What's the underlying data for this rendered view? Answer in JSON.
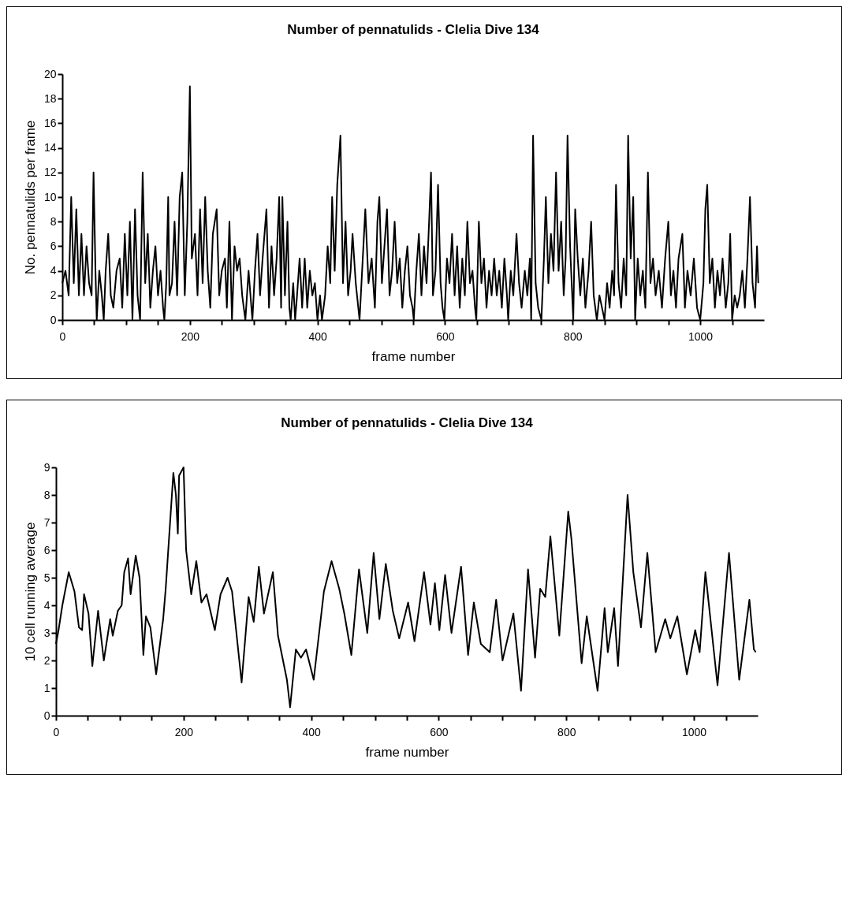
{
  "chart_data": [
    {
      "type": "line",
      "title": "Number of pennatulids - Clelia Dive 134",
      "xlabel": "frame number",
      "ylabel": "No. pennatulids per frame",
      "color": "#000000",
      "line_style": "solid",
      "x": [
        0,
        5,
        10,
        14,
        18,
        22,
        26,
        30,
        34,
        38,
        42,
        46,
        49,
        52,
        54,
        58,
        62,
        65,
        68,
        72,
        76,
        80,
        85,
        90,
        94,
        98,
        102,
        106,
        110,
        114,
        118,
        122,
        126,
        130,
        134,
        138,
        142,
        146,
        150,
        154,
        158,
        160,
        163,
        166,
        168,
        172,
        176,
        180,
        184,
        188,
        192,
        196,
        200,
        203,
        208,
        212,
        216,
        220,
        224,
        228,
        232,
        236,
        242,
        246,
        250,
        255,
        258,
        262,
        266,
        270,
        274,
        278,
        282,
        287,
        292,
        298,
        302,
        306,
        310,
        314,
        320,
        324,
        328,
        332,
        336,
        340,
        343,
        345,
        349,
        353,
        356,
        358,
        362,
        365,
        368,
        372,
        376,
        380,
        384,
        388,
        392,
        396,
        400,
        404,
        407,
        412,
        416,
        420,
        423,
        427,
        431,
        436,
        440,
        444,
        448,
        452,
        455,
        460,
        466,
        470,
        475,
        480,
        485,
        490,
        494,
        497,
        501,
        505,
        509,
        513,
        517,
        521,
        525,
        529,
        533,
        537,
        541,
        545,
        549,
        551,
        555,
        559,
        563,
        567,
        571,
        575,
        578,
        581,
        585,
        589,
        593,
        596,
        599,
        603,
        607,
        611,
        615,
        619,
        623,
        627,
        631,
        635,
        639,
        643,
        647,
        649,
        653,
        657,
        661,
        665,
        669,
        673,
        677,
        681,
        685,
        689,
        693,
        697,
        699,
        703,
        707,
        712,
        716,
        720,
        725,
        729,
        733,
        735,
        738,
        742,
        746,
        751,
        755,
        758,
        762,
        766,
        770,
        774,
        778,
        782,
        786,
        789,
        792,
        796,
        801,
        804,
        808,
        812,
        816,
        820,
        825,
        829,
        833,
        838,
        842,
        846,
        850,
        854,
        858,
        862,
        865,
        868,
        872,
        876,
        880,
        884,
        887,
        891,
        895,
        898,
        902,
        906,
        910,
        914,
        918,
        922,
        926,
        930,
        935,
        940,
        945,
        950,
        954,
        958,
        962,
        966,
        972,
        976,
        980,
        985,
        990,
        995,
        1000,
        1005,
        1008,
        1011,
        1015,
        1019,
        1023,
        1027,
        1031,
        1035,
        1040,
        1044,
        1047,
        1050,
        1054,
        1058,
        1062,
        1066,
        1070,
        1074,
        1078,
        1082,
        1086,
        1089,
        1091
      ],
      "values": [
        3,
        4,
        2,
        10,
        3,
        9,
        2,
        7,
        2,
        6,
        3,
        2,
        12,
        4,
        0,
        4,
        2,
        0,
        4,
        7,
        2,
        1,
        4,
        5,
        1,
        7,
        2,
        8,
        0,
        9,
        2,
        0,
        12,
        3,
        7,
        1,
        4,
        6,
        2,
        4,
        1,
        0,
        3,
        10,
        2,
        3,
        8,
        2,
        10,
        12,
        2,
        8,
        19,
        5,
        7,
        2,
        9,
        3,
        10,
        4,
        1,
        7,
        9,
        2,
        4,
        5,
        1,
        8,
        0,
        6,
        4,
        5,
        2,
        0,
        4,
        0,
        4,
        7,
        2,
        5,
        9,
        1,
        6,
        2,
        5,
        10,
        1,
        10,
        2,
        8,
        1,
        0,
        3,
        0,
        2,
        5,
        1,
        5,
        1,
        4,
        2,
        3,
        0,
        2,
        0,
        2,
        6,
        3,
        10,
        4,
        11,
        15,
        3,
        8,
        2,
        4,
        7,
        3,
        0,
        4,
        9,
        3,
        5,
        1,
        8,
        10,
        3,
        6,
        9,
        2,
        4,
        8,
        3,
        5,
        1,
        4,
        6,
        2,
        1,
        0,
        4,
        7,
        2,
        6,
        3,
        8,
        12,
        2,
        4,
        11,
        3,
        1,
        0,
        5,
        3,
        7,
        2,
        6,
        1,
        5,
        2,
        8,
        3,
        4,
        1,
        0,
        8,
        3,
        5,
        1,
        4,
        2,
        5,
        2,
        4,
        1,
        5,
        2,
        0,
        4,
        2,
        7,
        3,
        1,
        4,
        2,
        5,
        0,
        15,
        3,
        1,
        0,
        5,
        10,
        3,
        7,
        4,
        12,
        4,
        8,
        2,
        5,
        15,
        6,
        0,
        9,
        5,
        2,
        5,
        1,
        4,
        8,
        2,
        0,
        2,
        1,
        0,
        3,
        1,
        4,
        2,
        11,
        3,
        1,
        5,
        2,
        15,
        5,
        10,
        0,
        5,
        2,
        4,
        1,
        12,
        3,
        5,
        2,
        4,
        1,
        5,
        8,
        2,
        4,
        1,
        5,
        7,
        1,
        4,
        2,
        5,
        1,
        0,
        3,
        9,
        11,
        3,
        5,
        1,
        4,
        2,
        5,
        1,
        3,
        7,
        0,
        2,
        1,
        2,
        4,
        1,
        5,
        10,
        3,
        1,
        6,
        3
      ],
      "xlim": [
        0,
        1100
      ],
      "xticks": [
        0,
        {
          "value": 50,
          "label": null
        },
        {
          "value": 100,
          "label": null
        },
        {
          "value": 150,
          "label": null
        },
        200,
        {
          "value": 250,
          "label": null
        },
        {
          "value": 300,
          "label": null
        },
        {
          "value": 350,
          "label": null
        },
        400,
        {
          "value": 450,
          "label": null
        },
        {
          "value": 500,
          "label": null
        },
        {
          "value": 550,
          "label": null
        },
        600,
        {
          "value": 650,
          "label": null
        },
        {
          "value": 700,
          "label": null
        },
        {
          "value": 750,
          "label": null
        },
        800,
        {
          "value": 850,
          "label": null
        },
        {
          "value": 900,
          "label": null
        },
        {
          "value": 950,
          "label": null
        },
        1000,
        {
          "value": 1050,
          "label": null
        }
      ],
      "ylim": [
        0,
        20
      ],
      "yticks": [
        0,
        2,
        4,
        6,
        8,
        10,
        12,
        14,
        16,
        18,
        20
      ]
    },
    {
      "type": "line",
      "title": "Number of pennatulids - Clelia Dive 134",
      "xlabel": "frame number",
      "ylabel": "10 cell running average",
      "color": "#000000",
      "line_style": "solid",
      "x": [
        0,
        4,
        10,
        20,
        29,
        36,
        41,
        44,
        51,
        57,
        66,
        75,
        85,
        89,
        97,
        103,
        107,
        113,
        117,
        125,
        131,
        137,
        141,
        148,
        157,
        168,
        172,
        184,
        188,
        191,
        193,
        200,
        204,
        212,
        220,
        228,
        236,
        249,
        258,
        269,
        276,
        291,
        302,
        310,
        318,
        326,
        340,
        348,
        362,
        367,
        376,
        384,
        392,
        404,
        420,
        432,
        444,
        452,
        463,
        475,
        488,
        498,
        507,
        517,
        528,
        538,
        552,
        562,
        577,
        587,
        594,
        601,
        610,
        620,
        635,
        646,
        655,
        666,
        680,
        690,
        700,
        717,
        729,
        740,
        751,
        759,
        767,
        775,
        789,
        803,
        808,
        824,
        832,
        849,
        860,
        865,
        875,
        881,
        896,
        905,
        917,
        927,
        940,
        955,
        963,
        974,
        989,
        1002,
        1009,
        1018,
        1037,
        1055,
        1071,
        1087,
        1094,
        1097
      ],
      "values": [
        2.6,
        3.1,
        4.0,
        5.2,
        4.5,
        3.2,
        3.1,
        4.4,
        3.7,
        1.8,
        3.8,
        2.0,
        3.5,
        2.9,
        3.8,
        4.0,
        5.2,
        5.7,
        4.4,
        5.8,
        5.0,
        2.2,
        3.6,
        3.2,
        1.5,
        3.5,
        4.6,
        8.8,
        8.0,
        6.6,
        8.7,
        9.0,
        6.0,
        4.4,
        5.6,
        4.1,
        4.4,
        3.1,
        4.4,
        5.0,
        4.5,
        1.2,
        4.3,
        3.4,
        5.4,
        3.7,
        5.2,
        2.9,
        1.3,
        0.3,
        2.4,
        2.1,
        2.4,
        1.3,
        4.5,
        5.6,
        4.6,
        3.7,
        2.2,
        5.3,
        3.0,
        5.9,
        3.5,
        5.5,
        3.8,
        2.8,
        4.1,
        2.7,
        5.2,
        3.3,
        4.8,
        3.1,
        5.1,
        3.0,
        5.4,
        2.2,
        4.1,
        2.6,
        2.3,
        4.2,
        2.0,
        3.7,
        0.9,
        5.3,
        2.1,
        4.6,
        4.3,
        6.5,
        2.9,
        7.4,
        6.4,
        1.9,
        3.6,
        0.9,
        3.9,
        2.3,
        3.9,
        1.8,
        8.0,
        5.2,
        3.2,
        5.9,
        2.3,
        3.5,
        2.8,
        3.6,
        1.5,
        3.1,
        2.3,
        5.2,
        1.1,
        5.9,
        1.3,
        4.2,
        2.4,
        2.3
      ],
      "xlim": [
        0,
        1100
      ],
      "xticks": [
        0,
        {
          "value": 50,
          "label": null
        },
        {
          "value": 100,
          "label": null
        },
        {
          "value": 150,
          "label": null
        },
        200,
        {
          "value": 250,
          "label": null
        },
        {
          "value": 300,
          "label": null
        },
        {
          "value": 350,
          "label": null
        },
        400,
        {
          "value": 450,
          "label": null
        },
        {
          "value": 500,
          "label": null
        },
        {
          "value": 550,
          "label": null
        },
        600,
        {
          "value": 650,
          "label": null
        },
        {
          "value": 700,
          "label": null
        },
        {
          "value": 750,
          "label": null
        },
        800,
        {
          "value": 850,
          "label": null
        },
        {
          "value": 900,
          "label": null
        },
        {
          "value": 950,
          "label": null
        },
        1000,
        {
          "value": 1050,
          "label": null
        }
      ],
      "ylim": [
        0,
        9
      ],
      "yticks": [
        0,
        1,
        2,
        3,
        4,
        5,
        6,
        7,
        8,
        9
      ]
    }
  ]
}
